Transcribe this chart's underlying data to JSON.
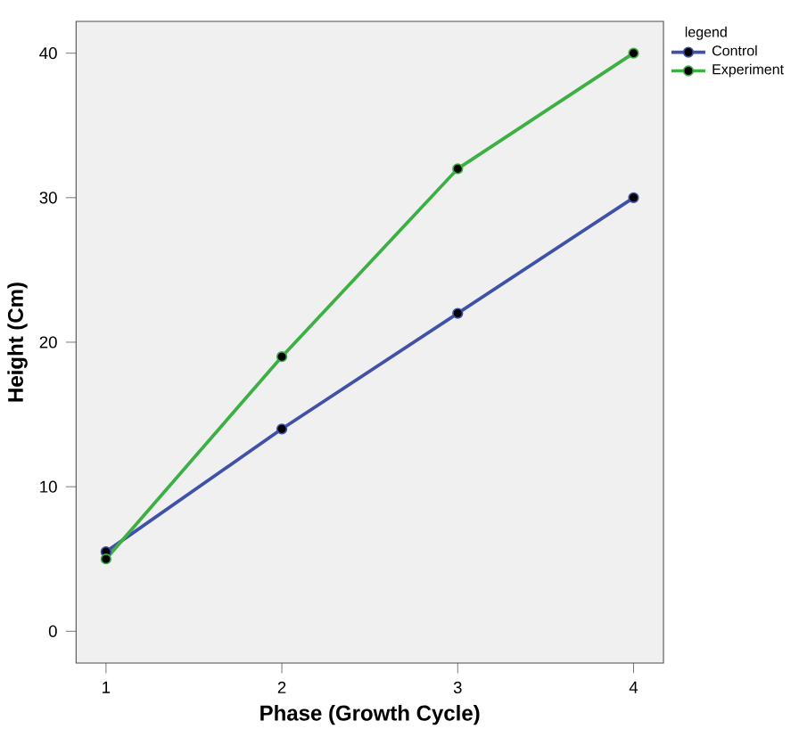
{
  "chart_data": {
    "type": "line",
    "xlabel": "Phase (Growth Cycle)",
    "ylabel": "Height (Cm)",
    "legend_title": "legend",
    "x": [
      1,
      2,
      3,
      4
    ],
    "series": [
      {
        "name": "Control",
        "color": "#3f51a8",
        "values": [
          5.5,
          14,
          22,
          30
        ]
      },
      {
        "name": "Experiment",
        "color": "#3cb043",
        "values": [
          5,
          19,
          32,
          40
        ]
      }
    ],
    "xlim": [
      0.83,
      4.17
    ],
    "ylim": [
      -2.2,
      42.2
    ],
    "xticks": [
      1,
      2,
      3,
      4
    ],
    "yticks": [
      0,
      10,
      20,
      30,
      40
    ],
    "grid": false,
    "legend": "top right",
    "marker": "circle",
    "line_style": "solid"
  }
}
